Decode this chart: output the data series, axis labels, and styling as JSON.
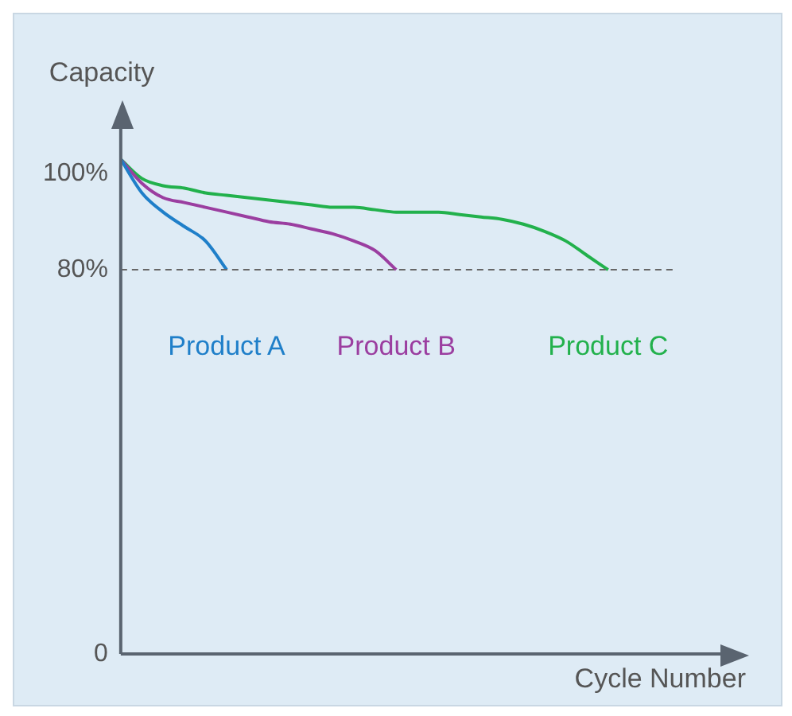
{
  "chart_data": {
    "type": "line",
    "xlabel": "Cycle Number",
    "ylabel": "Capacity",
    "categories": [
      null,
      null,
      null,
      null,
      null,
      null,
      null,
      null,
      null,
      null,
      null,
      null,
      null,
      null,
      null,
      null,
      null,
      null,
      null,
      null,
      null,
      null,
      null,
      null,
      null,
      null,
      null,
      null,
      null
    ],
    "series": [
      {
        "name": "Product A",
        "color": "#1f7fc9",
        "values": [
          103,
          96,
          92,
          89,
          86,
          80,
          null,
          null,
          null,
          null,
          null,
          null,
          null,
          null,
          null,
          null,
          null,
          null,
          null,
          null,
          null,
          null,
          null,
          null,
          null,
          null,
          null,
          null,
          null
        ]
      },
      {
        "name": "Product B",
        "color": "#9b3ea0",
        "values": [
          103,
          98,
          95,
          94,
          93,
          92,
          91,
          90,
          89.5,
          88.5,
          87.5,
          86,
          84,
          80,
          null,
          null,
          null,
          null,
          null,
          null,
          null,
          null,
          null,
          null,
          null,
          null,
          null,
          null,
          null
        ]
      },
      {
        "name": "Product C",
        "color": "#22b14c",
        "values": [
          103,
          99,
          97.5,
          97,
          96,
          95.5,
          95,
          94.5,
          94,
          93.5,
          93,
          93,
          92.5,
          92,
          92,
          92,
          91.5,
          91,
          90.5,
          89.5,
          88,
          86,
          83,
          80,
          null,
          null,
          null,
          null,
          null
        ]
      }
    ],
    "ylim": [
      0,
      110
    ],
    "yticks": [
      0,
      {
        "value": 80,
        "label": "80%"
      },
      {
        "value": 100,
        "label": "100%"
      }
    ],
    "ref_lines": [
      {
        "axis": "y",
        "value": 80,
        "line_style": "dashed",
        "color": "#666666"
      }
    ],
    "grid": false,
    "legend": false,
    "marker": "none",
    "line_style": "solid",
    "tick_labels": "y"
  }
}
